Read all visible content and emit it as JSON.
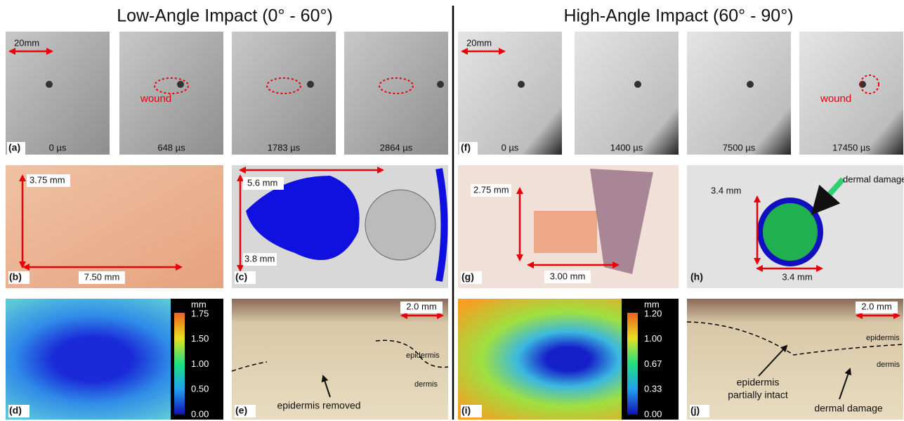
{
  "titles": {
    "left": "Low-Angle Impact (0° - 60°)",
    "right": "High-Angle Impact (60° - 90°)"
  },
  "panels": {
    "a": {
      "label": "(a)",
      "frames": [
        "0 µs",
        "648 µs",
        "1783 µs",
        "2864 µs"
      ],
      "scale": "20mm",
      "annotation": "wound"
    },
    "f": {
      "label": "(f)",
      "frames": [
        "0 µs",
        "1400 µs",
        "7500 µs",
        "17450 µs"
      ],
      "scale": "20mm",
      "annotation": "wound"
    },
    "b": {
      "label": "(b)",
      "dims": [
        "3.75 mm",
        "7.50 mm"
      ]
    },
    "c": {
      "label": "(c)",
      "dims": [
        "5.6 mm",
        "3.8 mm"
      ]
    },
    "g": {
      "label": "(g)",
      "dims": [
        "2.75 mm",
        "3.00 mm"
      ]
    },
    "h": {
      "label": "(h)",
      "dims": [
        "3.4 mm",
        "3.4 mm"
      ],
      "annotation": "dermal damage"
    },
    "d": {
      "label": "(d)",
      "unit": "mm",
      "ticks": [
        "1.75",
        "1.50",
        "1.00",
        "0.50",
        "0.00"
      ]
    },
    "i": {
      "label": "(i)",
      "unit": "mm",
      "ticks": [
        "1.20",
        "1.00",
        "0.67",
        "0.33",
        "0.00"
      ]
    },
    "e": {
      "label": "(e)",
      "scale": "2.0 mm",
      "annotations": [
        "epidermis",
        "dermis",
        "epidermis removed"
      ]
    },
    "j": {
      "label": "(j)",
      "scale": "2.0 mm",
      "annotations": [
        "epidermis",
        "dermis",
        "epidermis",
        "partially intact",
        "dermal damage"
      ]
    }
  }
}
